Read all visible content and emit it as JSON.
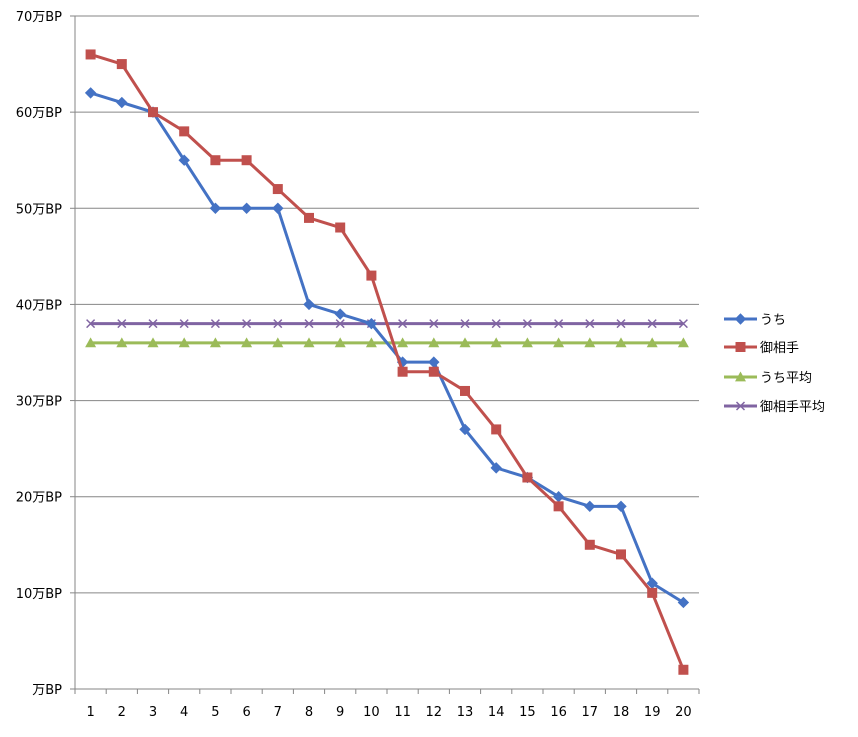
{
  "chart_data": {
    "type": "line",
    "title": "",
    "xlabel": "",
    "ylabel": "",
    "x": [
      1,
      2,
      3,
      4,
      5,
      6,
      7,
      8,
      9,
      10,
      11,
      12,
      13,
      14,
      15,
      16,
      17,
      18,
      19,
      20
    ],
    "x_tick_labels": [
      "1",
      "2",
      "3",
      "4",
      "5",
      "6",
      "7",
      "8",
      "9",
      "10",
      "11",
      "12",
      "13",
      "14",
      "15",
      "16",
      "17",
      "18",
      "19",
      "20"
    ],
    "ylim": [
      0,
      70
    ],
    "y_ticks": [
      0,
      10,
      20,
      30,
      40,
      50,
      60,
      70
    ],
    "y_tick_labels": [
      "万BP",
      "10万BP",
      "20万BP",
      "30万BP",
      "40万BP",
      "50万BP",
      "60万BP",
      "70万BP"
    ],
    "grid": true,
    "legend_position": "right",
    "series": [
      {
        "name": "うち",
        "color": "#4472C4",
        "marker": "diamond",
        "values": [
          62,
          61,
          60,
          55,
          50,
          50,
          50,
          40,
          39,
          38,
          34,
          34,
          27,
          23,
          22,
          20,
          19,
          19,
          11,
          9
        ]
      },
      {
        "name": "御相手",
        "color": "#C0504D",
        "marker": "square",
        "values": [
          66,
          65,
          60,
          58,
          55,
          55,
          52,
          49,
          48,
          43,
          33,
          33,
          31,
          27,
          22,
          19,
          15,
          14,
          10,
          2
        ]
      },
      {
        "name": "うち平均",
        "color": "#9BBB59",
        "marker": "triangle",
        "values": [
          36,
          36,
          36,
          36,
          36,
          36,
          36,
          36,
          36,
          36,
          36,
          36,
          36,
          36,
          36,
          36,
          36,
          36,
          36,
          36
        ]
      },
      {
        "name": "御相手平均",
        "color": "#8064A2",
        "marker": "x",
        "values": [
          38,
          38,
          38,
          38,
          38,
          38,
          38,
          38,
          38,
          38,
          38,
          38,
          38,
          38,
          38,
          38,
          38,
          38,
          38,
          38
        ]
      }
    ]
  }
}
